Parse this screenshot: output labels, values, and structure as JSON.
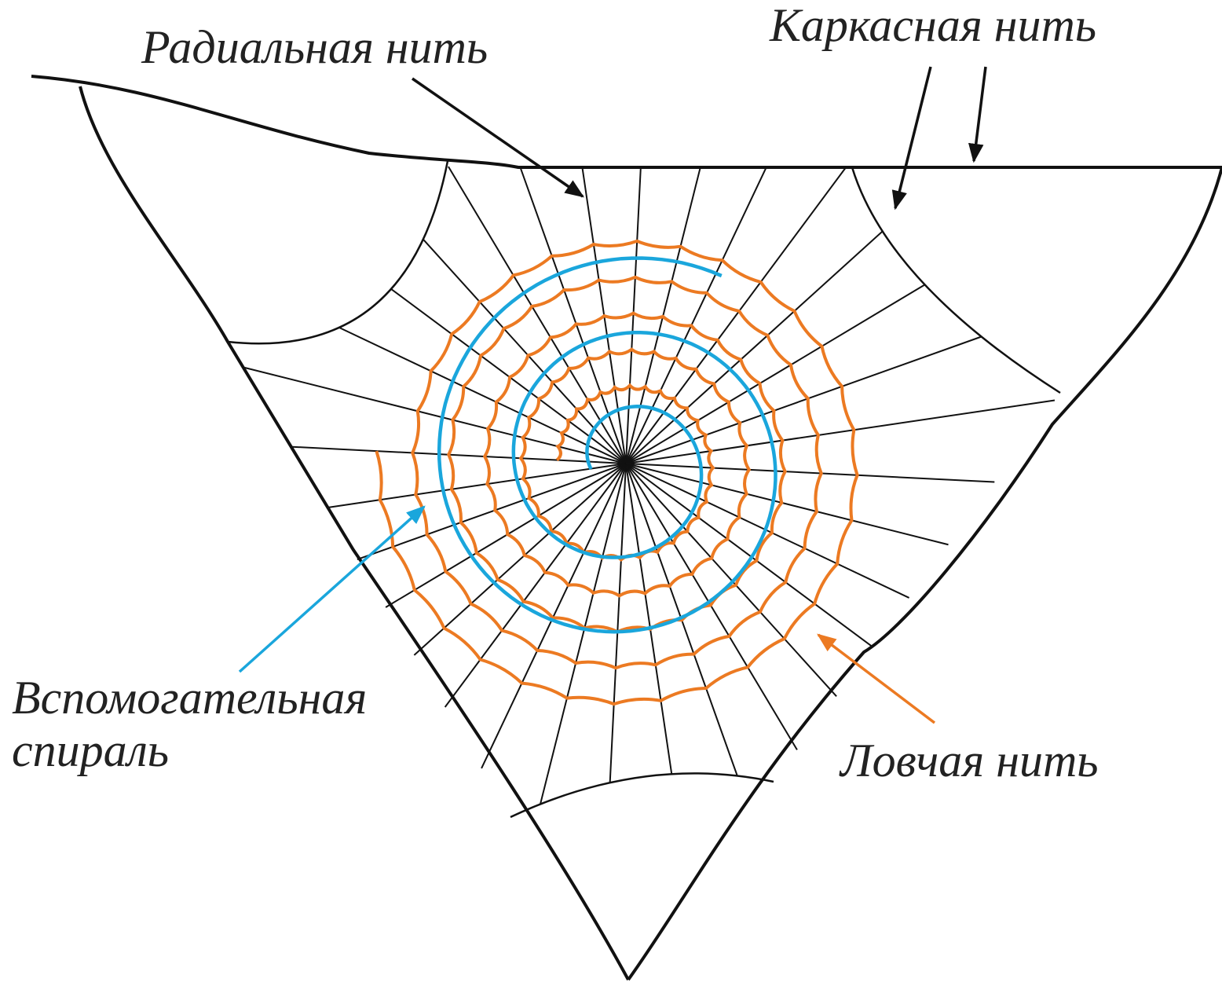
{
  "labels": {
    "radial_thread": "Радиальная нить",
    "frame_thread": "Каркасная нить",
    "auxiliary_spiral": [
      "Вспомогательная",
      "спираль"
    ],
    "catching_thread": "Ловчая нить"
  }
}
